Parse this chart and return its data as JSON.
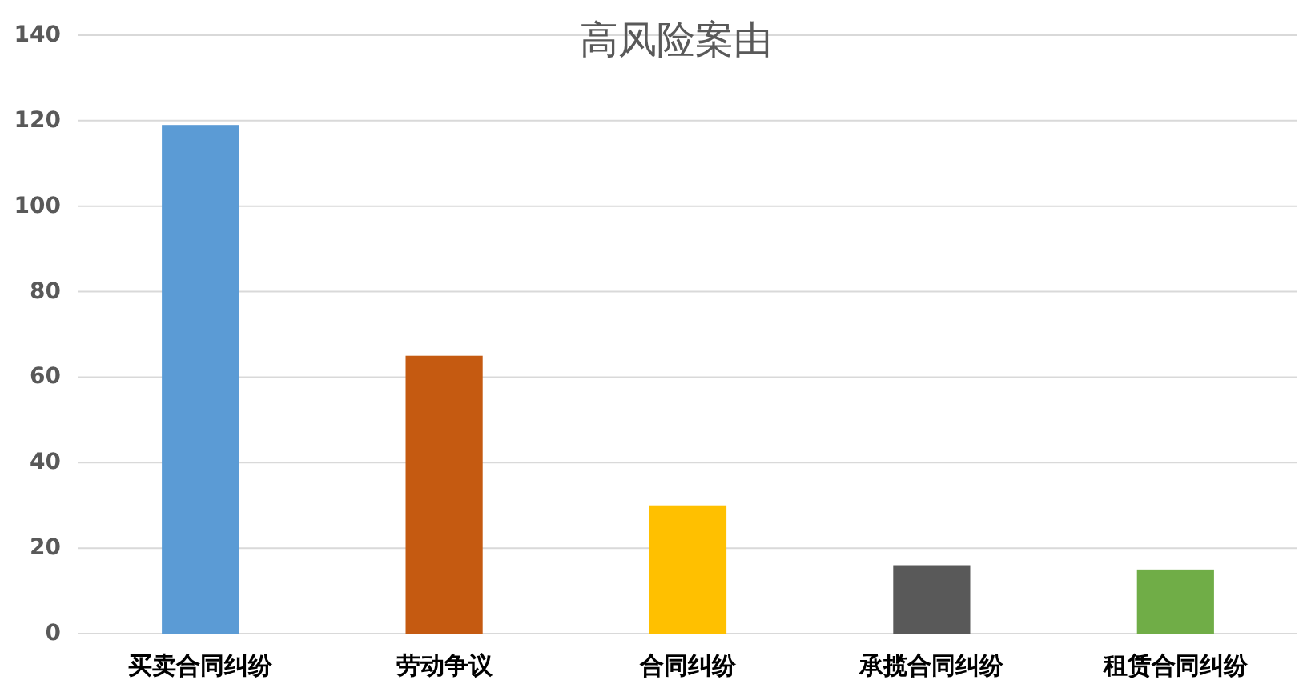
{
  "chart_data": {
    "type": "bar",
    "title": "高风险案由",
    "categories": [
      "买卖合同纠纷",
      "劳动争议",
      "合同纠纷",
      "承揽合同纠纷",
      "租赁合同纠纷"
    ],
    "values": [
      119,
      65,
      30,
      16,
      15
    ],
    "colors": [
      "#5b9bd5",
      "#c55a11",
      "#ffc000",
      "#595959",
      "#70ad47"
    ],
    "ylim": [
      0,
      140
    ],
    "yticks": [
      0,
      20,
      40,
      60,
      80,
      100,
      120,
      140
    ],
    "grid": "y"
  }
}
